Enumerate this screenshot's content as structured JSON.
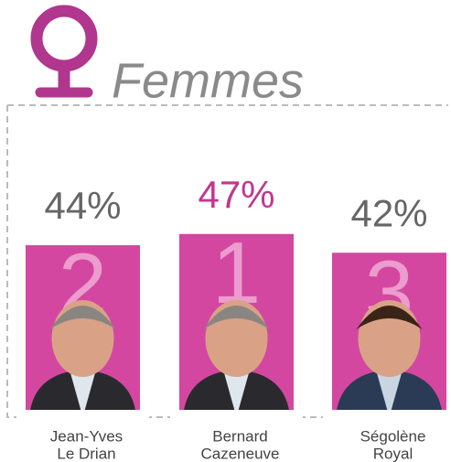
{
  "chart_data": {
    "type": "bar",
    "title": "Femmes",
    "categories": [
      [
        "Jean-Yves",
        "Le Drian"
      ],
      [
        "Bernard",
        "Cazeneuve"
      ],
      [
        "Ségolène",
        "Royal"
      ]
    ],
    "values": [
      44,
      47,
      42
    ],
    "value_labels": [
      "44%",
      "47%",
      "42%"
    ],
    "ranks": [
      2,
      1,
      3
    ],
    "color": "#d447a0",
    "value_label_colors": [
      "#666666",
      "#c2378e",
      "#666666"
    ]
  }
}
